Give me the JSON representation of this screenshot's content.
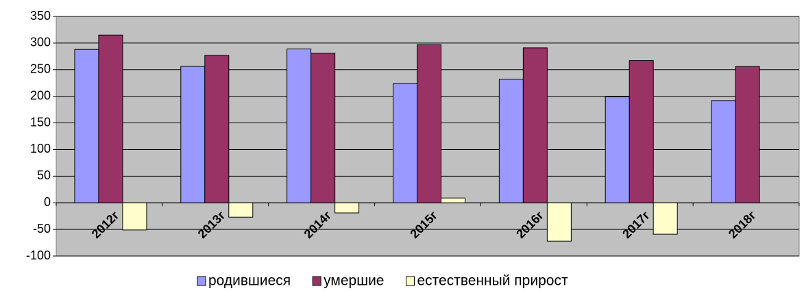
{
  "chart_data": {
    "type": "bar",
    "categories": [
      "2012г",
      "2013г",
      "2014г",
      "2015г",
      "2016г",
      "2017г",
      "2018г"
    ],
    "series": [
      {
        "name": "родившиеся",
        "color": "#9999ff",
        "values": [
          288,
          256,
          289,
          224,
          232,
          199,
          192
        ]
      },
      {
        "name": "умершие",
        "color": "#993366",
        "values": [
          315,
          277,
          281,
          297,
          291,
          267,
          256
        ]
      },
      {
        "name": "естественный прирост",
        "color": "#ffffcc",
        "values": [
          -51,
          -27,
          -19,
          9,
          -72,
          -59,
          null
        ]
      }
    ],
    "ylim": [
      -100,
      350
    ],
    "yticks": [
      -100,
      -50,
      0,
      50,
      100,
      150,
      200,
      250,
      300,
      350
    ],
    "grid": true,
    "legend": "bottom"
  }
}
